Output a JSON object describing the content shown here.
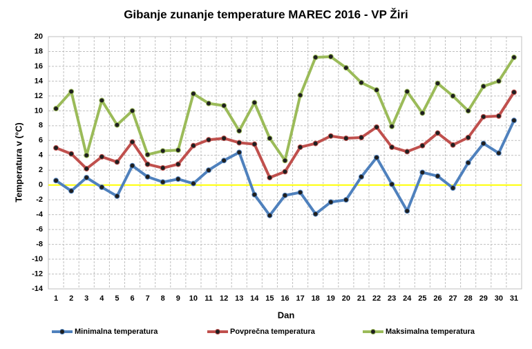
{
  "chart_data": {
    "type": "line",
    "title": "Gibanje zunanje temperature MAREC 2016 - VP Žiri",
    "x_label": "Dan",
    "y_label": "Temperatura v (°C)",
    "categories": [
      "1",
      "2",
      "3",
      "4",
      "5",
      "6",
      "7",
      "8",
      "9",
      "10",
      "11",
      "12",
      "13",
      "14",
      "15",
      "16",
      "17",
      "18",
      "19",
      "20",
      "21",
      "22",
      "23",
      "24",
      "25",
      "26",
      "27",
      "28",
      "29",
      "30",
      "31"
    ],
    "series": [
      {
        "name": "Minimalna temperatura",
        "color": "#4f81bd",
        "values": [
          0.6,
          -0.8,
          1.0,
          -0.3,
          -1.5,
          2.6,
          1.1,
          0.4,
          0.8,
          0.2,
          2.0,
          3.3,
          4.4,
          -1.3,
          -4.1,
          -1.4,
          -1.0,
          -3.9,
          -2.3,
          -2.0,
          1.1,
          3.7,
          0.1,
          -3.5,
          1.7,
          1.2,
          -0.4,
          3.0,
          5.6,
          4.3,
          8.7
        ]
      },
      {
        "name": "Povprečna temperatura",
        "color": "#c0504d",
        "values": [
          5.0,
          4.2,
          2.2,
          3.8,
          3.1,
          5.8,
          2.8,
          2.3,
          2.8,
          5.3,
          6.1,
          6.3,
          5.7,
          5.5,
          1.0,
          1.8,
          5.1,
          5.6,
          6.6,
          6.3,
          6.4,
          7.8,
          5.1,
          4.5,
          5.3,
          7.0,
          5.4,
          6.4,
          9.2,
          9.3,
          12.5
        ]
      },
      {
        "name": "Maksimalna temperatura",
        "color": "#9bbb59",
        "values": [
          10.3,
          12.6,
          4.0,
          11.4,
          8.1,
          10.0,
          4.1,
          4.6,
          4.7,
          12.3,
          11.0,
          10.7,
          7.3,
          11.1,
          6.3,
          3.3,
          12.1,
          17.2,
          17.3,
          15.8,
          13.8,
          12.8,
          7.9,
          12.6,
          9.7,
          13.7,
          12.0,
          10.0,
          13.3,
          14.0,
          17.2
        ]
      }
    ],
    "ylim": [
      -14,
      20
    ],
    "yticks": [
      -14,
      -12,
      -10,
      -8,
      -6,
      -4,
      -2,
      0,
      2,
      4,
      6,
      8,
      10,
      12,
      14,
      16,
      18,
      20
    ],
    "grid": true,
    "zero_line_color": "#ffff00",
    "legend": "bottom"
  }
}
